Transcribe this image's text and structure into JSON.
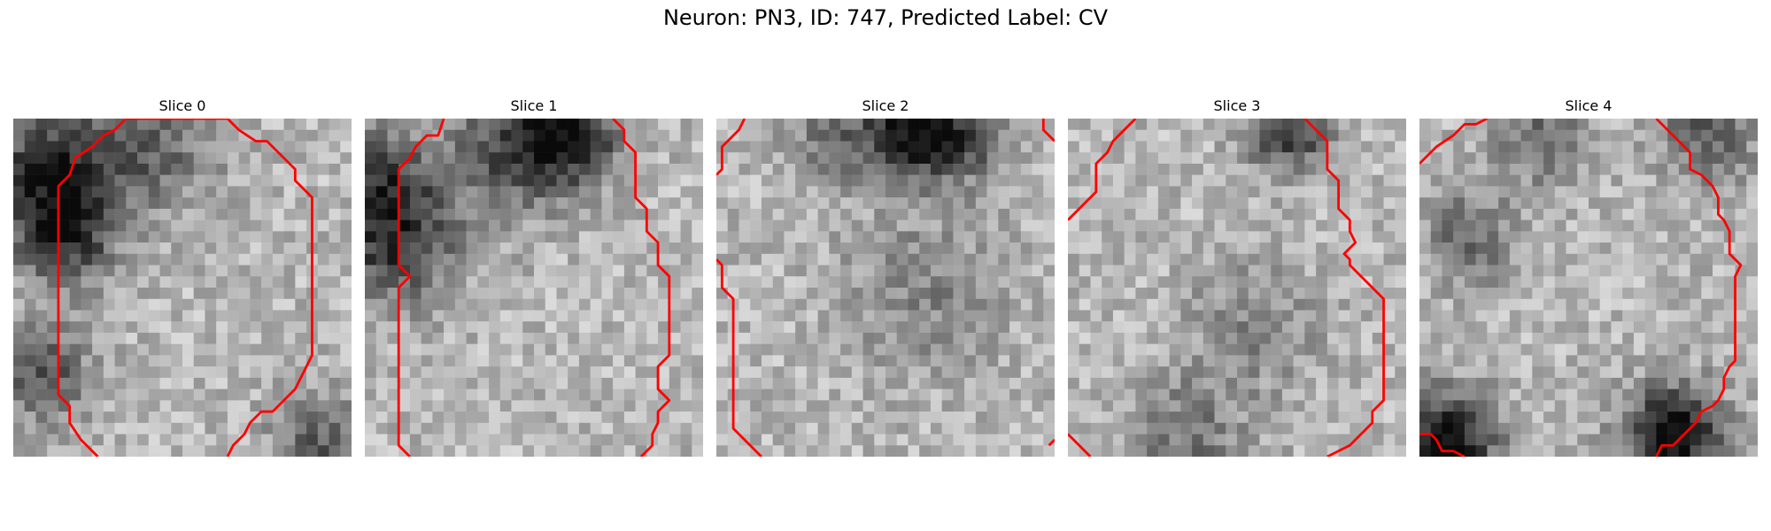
{
  "figure": {
    "title": "Neuron: PN3, ID: 747, Predicted Label: CV",
    "contour_color": "#ff0000",
    "colormap": "gray"
  },
  "panels": [
    {
      "title": "Slice 0",
      "contours": [
        [
          [
            7.5,
            30
          ],
          [
            6,
            28.5
          ],
          [
            5,
            27
          ],
          [
            5,
            25.5
          ],
          [
            4,
            24.5
          ],
          [
            4,
            6
          ],
          [
            5,
            5
          ],
          [
            5.5,
            3.5
          ],
          [
            7,
            2.5
          ],
          [
            8,
            1.5
          ],
          [
            9,
            1
          ],
          [
            10,
            0
          ],
          [
            19,
            0
          ],
          [
            20,
            1
          ],
          [
            21.5,
            2
          ],
          [
            22.5,
            2
          ],
          [
            24,
            3.5
          ],
          [
            25,
            4.5
          ],
          [
            25,
            5.5
          ],
          [
            26,
            6.5
          ],
          [
            26.5,
            7
          ],
          [
            26.5,
            21
          ],
          [
            26,
            22
          ],
          [
            25.5,
            23
          ],
          [
            25,
            24
          ],
          [
            24,
            25
          ],
          [
            23,
            26
          ],
          [
            22,
            26
          ],
          [
            21,
            27
          ],
          [
            20.5,
            28
          ],
          [
            19.5,
            29
          ],
          [
            19,
            30
          ]
        ]
      ]
    },
    {
      "title": "Slice 1",
      "contours": [
        [
          [
            4,
            30
          ],
          [
            3,
            29
          ],
          [
            3,
            15
          ],
          [
            4,
            14
          ],
          [
            3,
            13
          ],
          [
            3,
            4.5
          ],
          [
            4,
            3.5
          ],
          [
            4.5,
            2.5
          ],
          [
            5.5,
            1.5
          ],
          [
            6.5,
            1.5
          ],
          [
            7,
            0
          ]
        ],
        [
          [
            22,
            0
          ],
          [
            23,
            1
          ],
          [
            23,
            2
          ],
          [
            24,
            3
          ],
          [
            24,
            7
          ],
          [
            25,
            8
          ],
          [
            25,
            10
          ],
          [
            26,
            11
          ],
          [
            26,
            13
          ],
          [
            27,
            14
          ],
          [
            27,
            21
          ],
          [
            26,
            22
          ],
          [
            26,
            24
          ],
          [
            27,
            25
          ],
          [
            26,
            26
          ],
          [
            26,
            27
          ],
          [
            25.5,
            28
          ],
          [
            25.5,
            29
          ],
          [
            24.5,
            30
          ]
        ]
      ]
    },
    {
      "title": "Slice 2",
      "contours": [
        [
          [
            0,
            5
          ],
          [
            0.5,
            4.5
          ],
          [
            0.5,
            2.5
          ],
          [
            2,
            1
          ],
          [
            2.5,
            0
          ]
        ],
        [
          [
            29,
            0
          ],
          [
            29,
            1
          ],
          [
            30,
            2
          ]
        ],
        [
          [
            0,
            12.5
          ],
          [
            0.5,
            13
          ],
          [
            0.5,
            15
          ],
          [
            1.5,
            16
          ],
          [
            1.5,
            27.5
          ],
          [
            4,
            30
          ]
        ],
        [
          [
            29.5,
            29
          ],
          [
            30,
            28.5
          ]
        ]
      ]
    },
    {
      "title": "Slice 3",
      "contours": [
        [
          [
            0,
            9
          ],
          [
            1.5,
            7.5
          ],
          [
            2.5,
            6.5
          ],
          [
            2.5,
            4
          ],
          [
            3.5,
            3
          ],
          [
            4,
            2
          ],
          [
            5,
            1
          ],
          [
            6,
            0
          ]
        ],
        [
          [
            21,
            0
          ],
          [
            22,
            1
          ],
          [
            23,
            2
          ],
          [
            23,
            4.5
          ],
          [
            24,
            5.5
          ],
          [
            24,
            8
          ],
          [
            25,
            9
          ],
          [
            25,
            10
          ],
          [
            25.5,
            11
          ],
          [
            24.5,
            12
          ],
          [
            25,
            12.5
          ],
          [
            25,
            13
          ],
          [
            26,
            14
          ],
          [
            28,
            16
          ],
          [
            28,
            25
          ],
          [
            27,
            26
          ],
          [
            27,
            27
          ],
          [
            26,
            28
          ],
          [
            25,
            29
          ],
          [
            23,
            30
          ]
        ],
        [
          [
            0,
            28
          ],
          [
            1.5,
            29.5
          ],
          [
            2,
            30
          ]
        ]
      ]
    },
    {
      "title": "Slice 4",
      "contours": [
        [
          [
            0,
            4
          ],
          [
            1.5,
            2.5
          ],
          [
            3,
            1.5
          ],
          [
            4,
            0.5
          ],
          [
            5,
            0.5
          ],
          [
            6,
            0
          ]
        ],
        [
          [
            21,
            0
          ],
          [
            22,
            1
          ],
          [
            23,
            2
          ],
          [
            24,
            3
          ],
          [
            24,
            4.5
          ],
          [
            25,
            5
          ],
          [
            26,
            6
          ],
          [
            26.5,
            7
          ],
          [
            26.5,
            8.5
          ],
          [
            27,
            9
          ],
          [
            27.5,
            10
          ],
          [
            27.5,
            12
          ],
          [
            28.5,
            13
          ],
          [
            28,
            14
          ],
          [
            28,
            21.5
          ],
          [
            27.5,
            22
          ],
          [
            27,
            23
          ],
          [
            27,
            24
          ],
          [
            26.5,
            25
          ],
          [
            26,
            25.5
          ],
          [
            25,
            26
          ],
          [
            24.5,
            27
          ],
          [
            23.5,
            28
          ],
          [
            22.5,
            29
          ],
          [
            21.5,
            29
          ],
          [
            21,
            30
          ]
        ],
        [
          [
            0,
            28
          ],
          [
            1,
            28
          ],
          [
            1.5,
            28.5
          ],
          [
            2,
            29.5
          ],
          [
            3,
            29.5
          ],
          [
            4,
            30
          ]
        ]
      ]
    }
  ]
}
